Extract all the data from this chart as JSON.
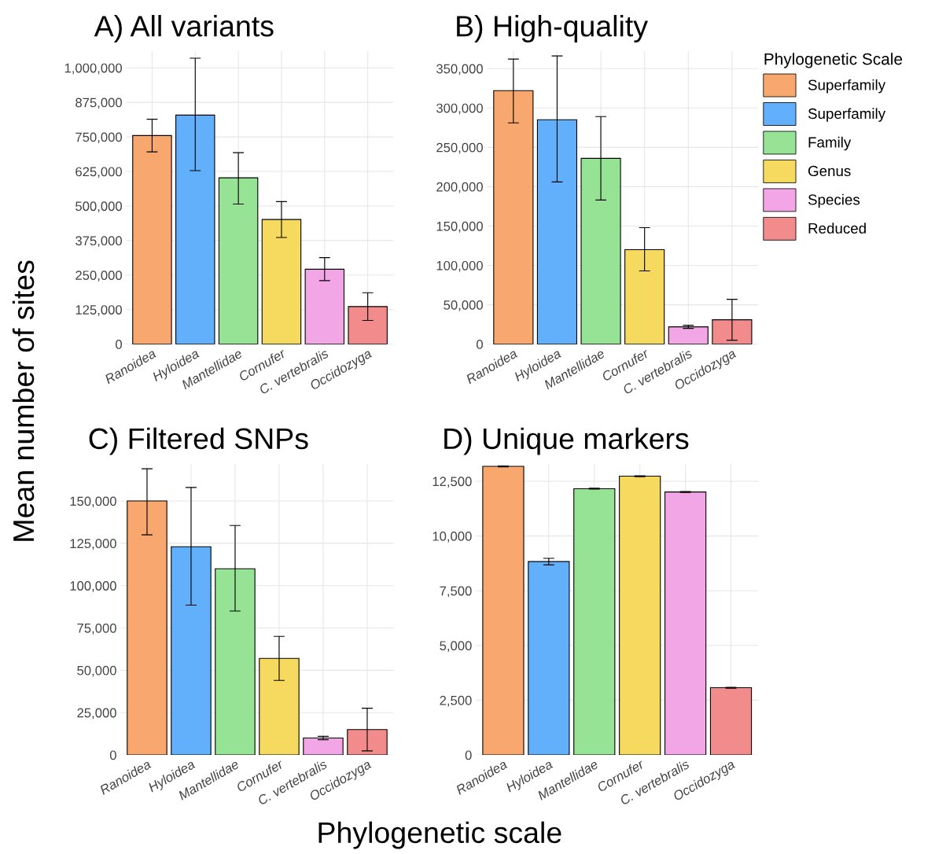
{
  "chart_data": [
    {
      "type": "bar",
      "title": "A) All variants",
      "ylabel": "Mean number of sites",
      "categories": [
        "Ranoidea",
        "Hyloidea",
        "Mantellidae",
        "Cornufer",
        "C. vertebralis",
        "Occidozyga"
      ],
      "ylim": [
        0,
        1060000
      ],
      "yticks": [
        {
          "value": 0,
          "label": "0"
        },
        {
          "value": 125000,
          "label": "125,000"
        },
        {
          "value": 250000,
          "label": "250,000"
        },
        {
          "value": 375000,
          "label": "375,000"
        },
        {
          "value": 500000,
          "label": "500,000"
        },
        {
          "value": 625000,
          "label": "625,000"
        },
        {
          "value": 750000,
          "label": "750,000"
        },
        {
          "value": 875000,
          "label": "875,000"
        },
        {
          "value": 1000000,
          "label": "1,000,000"
        }
      ],
      "grid": true,
      "legend": false,
      "values": [
        755000,
        829000,
        602000,
        451000,
        271000,
        136000
      ],
      "colors": [
        "#f8a86f",
        "#62b0fb",
        "#96e396",
        "#f6d95f",
        "#f2a6e6",
        "#f28b8b"
      ],
      "errors": [
        [
          696000,
          814000
        ],
        [
          628000,
          1035000
        ],
        [
          507000,
          693000
        ],
        [
          386000,
          516000
        ],
        [
          230000,
          313000
        ],
        [
          86000,
          186000
        ]
      ]
    },
    {
      "type": "bar",
      "title": "B) High-quality",
      "legend_title": "Phylogenetic Scale",
      "categories": [
        "Ranoidea",
        "Hyloidea",
        "Mantellidae",
        "Cornufer",
        "C. vertebralis",
        "Occidozyga"
      ],
      "ylim": [
        0,
        372000
      ],
      "yticks": [
        {
          "value": 0,
          "label": "0"
        },
        {
          "value": 50000,
          "label": "50,000"
        },
        {
          "value": 100000,
          "label": "100,000"
        },
        {
          "value": 150000,
          "label": "150,000"
        },
        {
          "value": 200000,
          "label": "200,000"
        },
        {
          "value": 250000,
          "label": "250,000"
        },
        {
          "value": 300000,
          "label": "300,000"
        },
        {
          "value": 350000,
          "label": "350,000"
        }
      ],
      "grid": true,
      "legend": "right",
      "series": [
        {
          "name": "Superfamily",
          "color": "#f8a86f",
          "values": [
            322000,
            null,
            null,
            null,
            null,
            null
          ],
          "errors": [
            [
              281000,
              362000
            ],
            null,
            null,
            null,
            null,
            null
          ]
        },
        {
          "name": "Superfamily",
          "color": "#62b0fb",
          "values": [
            null,
            285000,
            null,
            null,
            null,
            null
          ],
          "errors": [
            null,
            [
              206000,
              366000
            ],
            null,
            null,
            null,
            null
          ]
        },
        {
          "name": "Family",
          "color": "#96e396",
          "values": [
            null,
            null,
            236000,
            null,
            null,
            null
          ],
          "errors": [
            null,
            null,
            [
              183000,
              289000
            ],
            null,
            null,
            null
          ]
        },
        {
          "name": "Genus",
          "color": "#f6d95f",
          "values": [
            null,
            null,
            null,
            120000,
            null,
            null
          ],
          "errors": [
            null,
            null,
            null,
            [
              93000,
              148000
            ],
            null,
            null
          ]
        },
        {
          "name": "Species",
          "color": "#f2a6e6",
          "values": [
            null,
            null,
            null,
            null,
            22000,
            null
          ],
          "errors": [
            null,
            null,
            null,
            null,
            [
              20000,
              24000
            ],
            null
          ]
        },
        {
          "name": "Reduced",
          "color": "#f28b8b",
          "values": [
            null,
            null,
            null,
            null,
            null,
            31000
          ],
          "errors": [
            null,
            null,
            null,
            null,
            null,
            [
              5000,
              57000
            ]
          ]
        }
      ]
    },
    {
      "type": "bar",
      "title": "C) Filtered SNPs",
      "xlabel": "Phylogenetic scale",
      "categories": [
        "Ranoidea",
        "Hyloidea",
        "Mantellidae",
        "Cornufer",
        "C. vertebralis",
        "Occidozyga"
      ],
      "ylim": [
        0,
        172000
      ],
      "yticks": [
        {
          "value": 0,
          "label": "0"
        },
        {
          "value": 25000,
          "label": "25,000"
        },
        {
          "value": 50000,
          "label": "50,000"
        },
        {
          "value": 75000,
          "label": "75,000"
        },
        {
          "value": 100000,
          "label": "100,000"
        },
        {
          "value": 125000,
          "label": "125,000"
        },
        {
          "value": 150000,
          "label": "150,000"
        }
      ],
      "grid": true,
      "legend": false,
      "values": [
        150000,
        123000,
        110000,
        57000,
        10000,
        15000
      ],
      "colors": [
        "#f8a86f",
        "#62b0fb",
        "#96e396",
        "#f6d95f",
        "#f2a6e6",
        "#f28b8b"
      ],
      "errors": [
        [
          130000,
          169000
        ],
        [
          88500,
          158000
        ],
        [
          85000,
          135500
        ],
        [
          44000,
          70000
        ],
        [
          9000,
          11000
        ],
        [
          2400,
          27600
        ]
      ]
    },
    {
      "type": "bar",
      "title": "D) Unique markers",
      "categories": [
        "Ranoidea",
        "Hyloidea",
        "Mantellidae",
        "Cornufer",
        "C. vertebralis",
        "Occidozyga"
      ],
      "ylim": [
        0,
        13300
      ],
      "yticks": [
        {
          "value": 0,
          "label": "0"
        },
        {
          "value": 2500,
          "label": "2,500"
        },
        {
          "value": 5000,
          "label": "5,000"
        },
        {
          "value": 7500,
          "label": "7,500"
        },
        {
          "value": 10000,
          "label": "10,000"
        },
        {
          "value": 12500,
          "label": "12,500"
        }
      ],
      "grid": true,
      "legend": false,
      "values": [
        13180,
        8830,
        12160,
        12730,
        12010,
        3070
      ],
      "colors": [
        "#f8a86f",
        "#62b0fb",
        "#96e396",
        "#f6d95f",
        "#f2a6e6",
        "#f28b8b"
      ],
      "errors": [
        [
          13160,
          13200
        ],
        [
          8680,
          8980
        ],
        [
          12140,
          12180
        ],
        [
          12710,
          12750
        ],
        [
          11990,
          12030
        ],
        [
          3050,
          3090
        ]
      ]
    }
  ]
}
